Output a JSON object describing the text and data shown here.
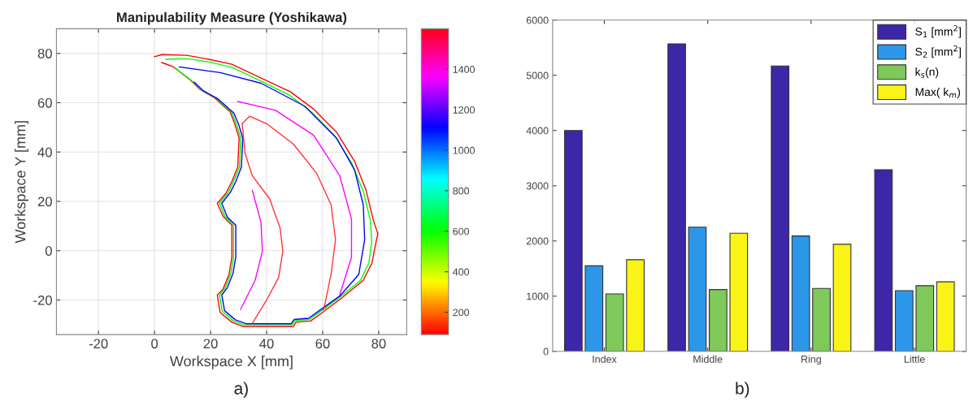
{
  "chart_data": [
    {
      "type": "line",
      "title": "Manipulability Measure (Yoshikawa)",
      "xlabel": "Workspace X [mm]",
      "ylabel": "Workspace Y [mm]",
      "xlim": [
        -35,
        90
      ],
      "ylim": [
        -34,
        90
      ],
      "xticks": [
        -20,
        0,
        20,
        40,
        60,
        80
      ],
      "yticks": [
        -20,
        0,
        20,
        40,
        60,
        80
      ],
      "grid": true,
      "legend": false,
      "clim": [
        90,
        1600
      ],
      "cticks": [
        200,
        400,
        600,
        800,
        1000,
        1200,
        1400
      ],
      "annotations": [
        "a)"
      ],
      "series": [
        {
          "color": "#ff0000",
          "x": [
            0,
            2.6,
            11.5,
            19.3,
            27.6,
            38,
            48.4,
            56.8,
            65,
            71.4,
            75.5,
            78,
            79.7,
            79,
            77.6,
            74.5,
            67,
            60,
            55.7,
            50.5,
            49.5,
            31.8,
            27.6,
            23.4,
            22.4,
            24.5,
            26.6,
            27.6,
            27.6,
            24.5,
            22.4,
            25.5,
            27.6,
            29.7,
            30.2,
            28.6,
            27,
            21.4,
            16.1,
            13,
            6.8,
            2.6
          ],
          "values": [
            78.6,
            79.5,
            79.2,
            77.6,
            75.6,
            70,
            64.5,
            57.4,
            48,
            36.2,
            24.5,
            12.7,
            6.8,
            3.3,
            -5,
            -12,
            -19,
            -25,
            -28.5,
            -29,
            -30.8,
            -30.8,
            -29,
            -25,
            -18,
            -15.5,
            -9.6,
            -2.6,
            10.4,
            13.9,
            19.2,
            23.3,
            28,
            33.9,
            45.6,
            51.5,
            56.2,
            62,
            65.5,
            69,
            74.5,
            76.3
          ]
        },
        {
          "color": "#00ff00",
          "x": [
            4,
            12,
            20,
            28,
            38,
            48,
            56,
            64,
            70.4,
            74.5,
            77,
            77.5,
            76.5,
            73.5,
            66.5,
            59.5,
            55.2,
            50,
            49,
            32.2,
            28.2,
            24.2,
            23.2,
            25.2,
            27.2,
            28.2,
            28.2,
            25.2,
            23.2,
            26.2,
            28.2,
            30.3,
            30.8,
            29.2,
            27.6,
            22,
            16.6,
            13.5,
            7.5
          ],
          "values": [
            77.6,
            77.8,
            76.4,
            74.2,
            68.8,
            63.2,
            56.2,
            47,
            35.5,
            24,
            12.5,
            4,
            -5,
            -12,
            -18.6,
            -24.4,
            -27.9,
            -28.4,
            -30.2,
            -30.2,
            -28.5,
            -24.6,
            -18,
            -15.2,
            -9.4,
            -2.6,
            10.4,
            13.8,
            19.2,
            23.4,
            28,
            33.9,
            45.6,
            51.4,
            56,
            61.8,
            65.3,
            68.7,
            74
          ]
        },
        {
          "color": "#0000ff",
          "x": [
            8.9,
            23.4,
            38,
            53.6,
            65,
            71.4,
            74.5,
            75,
            72.9,
            66.3,
            59.3,
            55,
            49.8,
            48.8,
            32.6,
            28.8,
            25,
            24,
            26,
            28,
            29,
            29,
            26,
            24,
            27,
            29,
            31,
            31.5,
            30,
            28.3,
            22.7,
            17.3,
            14.2
          ],
          "values": [
            74.5,
            72.2,
            67.9,
            58.6,
            45.6,
            32.7,
            18.6,
            4.5,
            -9.6,
            -18.2,
            -23.9,
            -27.4,
            -27.9,
            -29.6,
            -29.6,
            -28,
            -24.3,
            -18,
            -15,
            -9.2,
            -2.6,
            10.4,
            13.6,
            19.2,
            23.5,
            28,
            33.9,
            45.6,
            51.3,
            55.8,
            61.5,
            64.9,
            68.3
          ]
        },
        {
          "color": "#ff00ff",
          "x": [
            29.7,
            43.2,
            56.8,
            66.1,
            70.3,
            70.3,
            66.1
          ],
          "values": [
            60.5,
            56.9,
            46.8,
            30.4,
            12.7,
            -2.6,
            -17.9
          ]
        },
        {
          "color": "#ff00ff",
          "x": [
            34.9,
            38,
            38.5,
            35.9,
            30.7
          ],
          "values": [
            24.5,
            11.5,
            -0.2,
            -12,
            -23.8
          ]
        },
        {
          "color": "#ff3333",
          "x": [
            34.9,
            40,
            44.3,
            45.8,
            44.8,
            41.1,
            34.9,
            32.3,
            31.3,
            33.9,
            40,
            49.5,
            57.8,
            63,
            64.6,
            63,
            60.4
          ],
          "values": [
            -29.5,
            -20,
            -10.8,
            -0.2,
            9.2,
            21,
            30.4,
            39.5,
            51.5,
            54.5,
            51.5,
            43.3,
            31.5,
            18.6,
            4.5,
            -9.6,
            -23.8
          ]
        }
      ]
    },
    {
      "type": "bar",
      "categories": [
        "Index",
        "Middle",
        "Ring",
        "Little"
      ],
      "ylim": [
        0,
        6000
      ],
      "yticks": [
        0,
        1000,
        2000,
        3000,
        4000,
        5000,
        6000
      ],
      "grid": false,
      "legend": "top right",
      "annotations": [
        "b)"
      ],
      "series": [
        {
          "name": "S$_{1}$ [mm$^{2}$]",
          "color": "#3e26a8",
          "values": [
            4000,
            5570,
            5170,
            3290
          ]
        },
        {
          "name": "S$_{2}$ [mm$^{2}$]",
          "color": "#2c96e8",
          "values": [
            1550,
            2250,
            2090,
            1100
          ]
        },
        {
          "name": "k$_{s}$(n)",
          "color": "#7ec95a",
          "values": [
            1040,
            1120,
            1140,
            1190
          ]
        },
        {
          "name": "Max( k$_{m}$)",
          "color": "#f9f316",
          "values": [
            1660,
            2140,
            1940,
            1260
          ]
        }
      ]
    }
  ]
}
